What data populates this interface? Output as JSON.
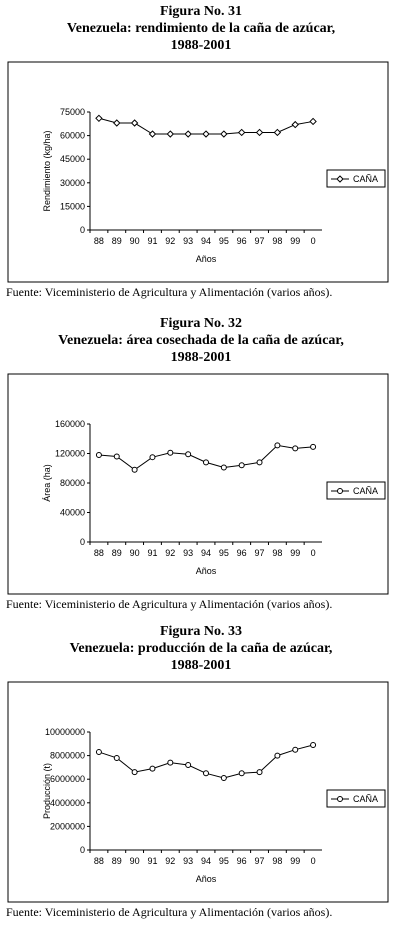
{
  "chart_data": [
    {
      "type": "line",
      "title": [
        "Figura No. 31",
        "Venezuela: rendimiento de la caña de azúcar,",
        "1988-2001"
      ],
      "ylabel": "Rendimiento (kg/ha)",
      "xlabel": "Años",
      "categories": [
        "88",
        "89",
        "90",
        "91",
        "92",
        "93",
        "94",
        "95",
        "96",
        "97",
        "98",
        "99",
        "0"
      ],
      "series": [
        {
          "name": "CAÑA",
          "color": "#000000",
          "marker": "diamond",
          "values": [
            71000,
            68000,
            68000,
            61000,
            61000,
            61000,
            61000,
            61000,
            62000,
            62000,
            62000,
            67000,
            69000
          ]
        }
      ],
      "ylim": [
        0,
        75000
      ],
      "yticks": [
        0,
        15000,
        30000,
        45000,
        60000,
        75000
      ],
      "source": "Fuente: Viceministerio de Agricultura y Alimentación (varios años)."
    },
    {
      "type": "line",
      "title": [
        "Figura No. 32",
        "Venezuela: área cosechada de la caña de azúcar,",
        "1988-2001"
      ],
      "ylabel": "Área (ha)",
      "xlabel": "Años",
      "categories": [
        "88",
        "89",
        "90",
        "91",
        "92",
        "93",
        "94",
        "95",
        "96",
        "97",
        "98",
        "99",
        "0"
      ],
      "series": [
        {
          "name": "CAÑA",
          "color": "#000000",
          "marker": "circle",
          "values": [
            118000,
            116000,
            98000,
            115000,
            121000,
            119000,
            108000,
            101000,
            104000,
            108000,
            131000,
            127000,
            129000
          ]
        }
      ],
      "ylim": [
        0,
        160000
      ],
      "yticks": [
        0,
        40000,
        80000,
        120000,
        160000
      ],
      "source": "Fuente: Viceministerio de Agricultura y Alimentación (varios años)."
    },
    {
      "type": "line",
      "title": [
        "Figura No. 33",
        "Venezuela: producción de la caña de azúcar,",
        "1988-2001"
      ],
      "ylabel": "Producción (t)",
      "xlabel": "Años",
      "categories": [
        "88",
        "89",
        "90",
        "91",
        "92",
        "93",
        "94",
        "95",
        "96",
        "97",
        "98",
        "99",
        "0"
      ],
      "series": [
        {
          "name": "CAÑA",
          "color": "#000000",
          "marker": "circle",
          "values": [
            8300000,
            7800000,
            6600000,
            6900000,
            7400000,
            7200000,
            6500000,
            6100000,
            6500000,
            6600000,
            8000000,
            8500000,
            8900000
          ]
        }
      ],
      "ylim": [
        0,
        10000000
      ],
      "yticks": [
        0,
        2000000,
        4000000,
        6000000,
        8000000,
        10000000
      ],
      "source": "Fuente: Viceministerio de Agricultura y Alimentación (varios años)."
    }
  ]
}
